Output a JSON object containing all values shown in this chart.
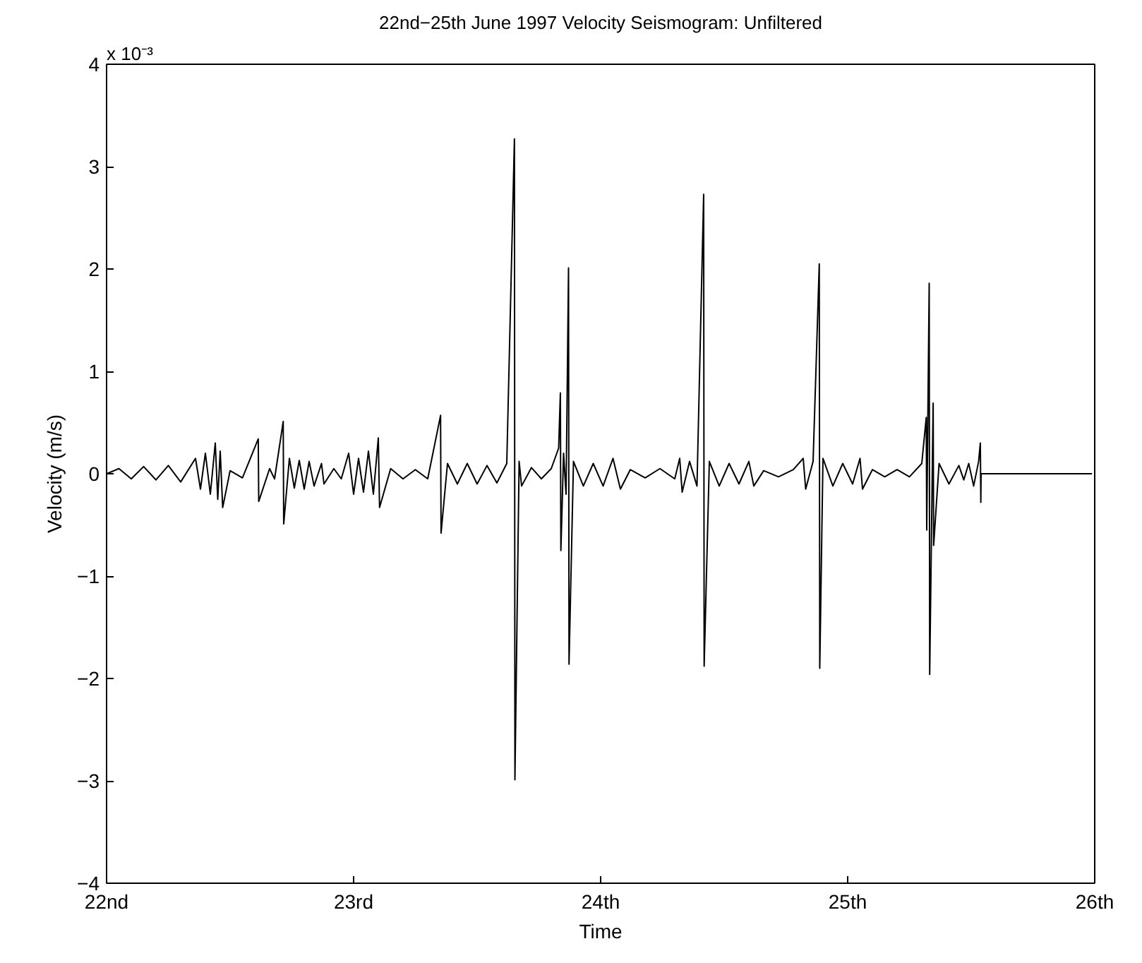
{
  "chart_data": {
    "type": "line",
    "title": "22nd−25th June 1997 Velocity Seismogram: Unfiltered",
    "xlabel": "Time",
    "ylabel": "Velocity (m/s)",
    "annotations": [
      "x 10⁻³"
    ],
    "xlim": [
      22,
      26
    ],
    "ylim": [
      -4,
      4
    ],
    "xticks": [
      {
        "value": 22,
        "label": "22nd"
      },
      {
        "value": 23,
        "label": "23rd"
      },
      {
        "value": 24,
        "label": "24th"
      },
      {
        "value": 25,
        "label": "25th"
      },
      {
        "value": 26,
        "label": "26th"
      }
    ],
    "yticks": [
      {
        "value": -4,
        "label": "−4"
      },
      {
        "value": -3,
        "label": "−3"
      },
      {
        "value": -2,
        "label": "−2"
      },
      {
        "value": -1,
        "label": "−1"
      },
      0,
      1,
      2,
      3,
      4
    ],
    "grid": false,
    "marker": "none",
    "line_style": "solid",
    "series": [
      {
        "color": "#000000",
        "x": [
          22.0,
          22.05,
          22.1,
          22.15,
          22.2,
          22.25,
          22.3,
          22.36,
          22.38,
          22.4,
          22.42,
          22.44,
          22.45,
          22.46,
          22.47,
          22.5,
          22.55,
          22.614,
          22.616,
          22.66,
          22.68,
          22.715,
          22.717,
          22.74,
          22.76,
          22.78,
          22.8,
          22.82,
          22.84,
          22.87,
          22.88,
          22.92,
          22.95,
          22.98,
          23.0,
          23.02,
          23.04,
          23.06,
          23.08,
          23.1,
          23.105,
          23.15,
          23.2,
          23.25,
          23.3,
          23.352,
          23.354,
          23.38,
          23.42,
          23.46,
          23.5,
          23.54,
          23.58,
          23.62,
          23.651,
          23.653,
          23.67,
          23.68,
          23.72,
          23.76,
          23.8,
          23.83,
          23.837,
          23.839,
          23.85,
          23.86,
          23.87,
          23.872,
          23.89,
          23.93,
          23.97,
          24.01,
          24.05,
          24.08,
          24.12,
          24.18,
          24.24,
          24.3,
          24.32,
          24.33,
          24.36,
          24.39,
          24.417,
          24.419,
          24.44,
          24.48,
          24.52,
          24.56,
          24.6,
          24.62,
          24.66,
          24.72,
          24.78,
          24.82,
          24.83,
          24.86,
          24.885,
          24.887,
          24.9,
          24.94,
          24.98,
          25.02,
          25.05,
          25.06,
          25.1,
          25.15,
          25.2,
          25.25,
          25.3,
          25.318,
          25.32,
          25.33,
          25.332,
          25.346,
          25.348,
          25.37,
          25.41,
          25.45,
          25.47,
          25.49,
          25.51,
          25.53,
          25.537,
          25.539,
          25.54,
          25.989
        ],
        "values": [
          0,
          0.05,
          -0.05,
          0.07,
          -0.06,
          0.08,
          -0.08,
          0.15,
          -0.15,
          0.2,
          -0.2,
          0.3,
          -0.25,
          0.22,
          -0.33,
          0.03,
          -0.04,
          0.34,
          -0.27,
          0.05,
          -0.05,
          0.51,
          -0.49,
          0.15,
          -0.14,
          0.13,
          -0.15,
          0.12,
          -0.12,
          0.1,
          -0.1,
          0.05,
          -0.05,
          0.2,
          -0.2,
          0.15,
          -0.18,
          0.22,
          -0.2,
          0.35,
          -0.33,
          0.05,
          -0.05,
          0.04,
          -0.05,
          0.57,
          -0.58,
          0.1,
          -0.1,
          0.1,
          -0.1,
          0.08,
          -0.09,
          0.1,
          3.27,
          -2.99,
          0.12,
          -0.12,
          0.06,
          -0.05,
          0.05,
          0.25,
          0.79,
          -0.75,
          0.2,
          -0.2,
          2.01,
          -1.86,
          0.12,
          -0.12,
          0.1,
          -0.12,
          0.15,
          -0.15,
          0.04,
          -0.04,
          0.05,
          -0.05,
          0.15,
          -0.18,
          0.12,
          -0.12,
          2.73,
          -1.88,
          0.12,
          -0.12,
          0.1,
          -0.1,
          0.12,
          -0.12,
          0.03,
          -0.03,
          0.04,
          0.15,
          -0.15,
          0.12,
          2.05,
          -1.9,
          0.15,
          -0.12,
          0.1,
          -0.1,
          0.15,
          -0.15,
          0.04,
          -0.03,
          0.04,
          -0.03,
          0.1,
          0.55,
          -0.55,
          1.86,
          -1.96,
          0.69,
          -0.7,
          0.1,
          -0.1,
          0.08,
          -0.06,
          0.1,
          -0.12,
          0.12,
          0.3,
          -0.28,
          0,
          0
        ]
      }
    ]
  }
}
